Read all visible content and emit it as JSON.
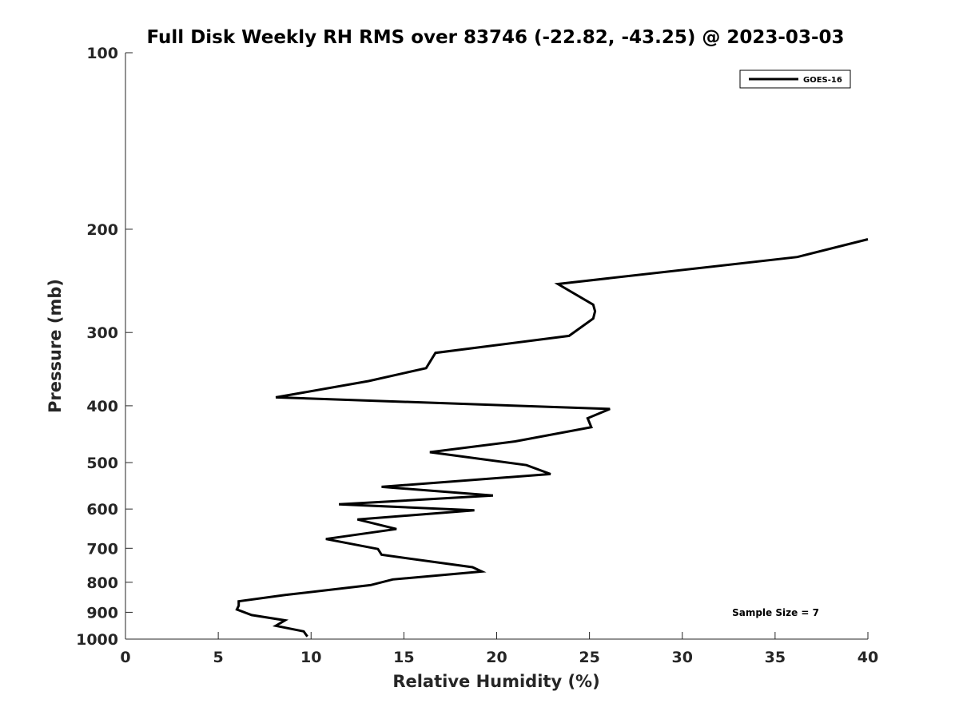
{
  "chart_data": {
    "type": "line",
    "title": "Full Disk Weekly RH RMS over 83746 (-22.82, -43.25) @ 2023-03-03",
    "xlabel": "Relative Humidity (%)",
    "ylabel": "Pressure (mb)",
    "xlim": [
      0,
      40
    ],
    "ylim": [
      1000,
      100
    ],
    "y_scale": "log",
    "y_reversed": true,
    "x_ticks": [
      0,
      5,
      10,
      15,
      20,
      25,
      30,
      35,
      40
    ],
    "x_tick_labels": [
      "0",
      "5",
      "10",
      "15",
      "20",
      "25",
      "30",
      "35",
      "40"
    ],
    "y_ticks": [
      100,
      200,
      300,
      400,
      500,
      600,
      700,
      800,
      900,
      1000
    ],
    "y_tick_labels": [
      "100",
      "200",
      "300",
      "400",
      "500",
      "600",
      "700",
      "800",
      "900",
      "1000"
    ],
    "grid": false,
    "legend_position": "top-right",
    "annotation": "Sample Size = 7",
    "series": [
      {
        "name": "GOES-16",
        "color": "#000000",
        "points": [
          [
            40.0,
            208
          ],
          [
            36.2,
            223
          ],
          [
            23.3,
            248
          ],
          [
            25.2,
            269
          ],
          [
            25.3,
            276
          ],
          [
            25.2,
            284
          ],
          [
            23.9,
            304
          ],
          [
            16.7,
            325
          ],
          [
            16.2,
            345
          ],
          [
            13.1,
            363
          ],
          [
            8.1,
            387
          ],
          [
            26.1,
            405
          ],
          [
            24.9,
            420
          ],
          [
            25.1,
            435
          ],
          [
            21.0,
            460
          ],
          [
            16.4,
            480
          ],
          [
            21.6,
            505
          ],
          [
            22.9,
            523
          ],
          [
            13.8,
            550
          ],
          [
            19.8,
            569
          ],
          [
            11.5,
            589
          ],
          [
            18.8,
            603
          ],
          [
            12.5,
            625
          ],
          [
            14.6,
            649
          ],
          [
            10.8,
            675
          ],
          [
            13.6,
            702
          ],
          [
            13.8,
            718
          ],
          [
            18.7,
            754
          ],
          [
            19.2,
            767
          ],
          [
            14.4,
            791
          ],
          [
            13.2,
            809
          ],
          [
            8.6,
            841
          ],
          [
            6.1,
            862
          ],
          [
            6.1,
            877
          ],
          [
            6.0,
            890
          ],
          [
            6.8,
            910
          ],
          [
            8.6,
            929
          ],
          [
            8.1,
            949
          ],
          [
            9.6,
            970
          ],
          [
            9.8,
            990
          ]
        ]
      }
    ]
  }
}
